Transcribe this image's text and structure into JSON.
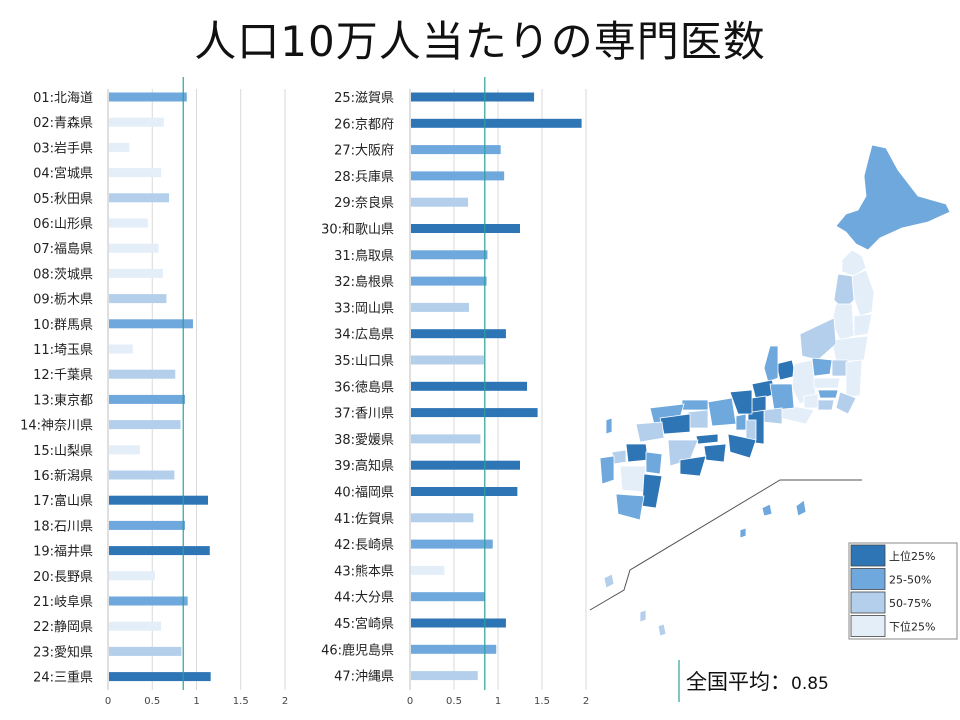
{
  "title": "人口10万人当たりの専門医数",
  "national_average": {
    "label": "全国平均：",
    "value": "0.85"
  },
  "legend": [
    {
      "label": "上位25%",
      "color": "#2e75b6"
    },
    {
      "label": "25-50%",
      "color": "#6fa8dc"
    },
    {
      "label": "50-75%",
      "color": "#b4cfec"
    },
    {
      "label": "下位25%",
      "color": "#e3eef9"
    }
  ],
  "chart_data": [
    {
      "type": "bar",
      "orientation": "horizontal",
      "xlim": [
        0,
        2
      ],
      "xticks": [
        "0",
        "0.5",
        "1",
        "1.5",
        "2"
      ],
      "reference_line": 0.85,
      "grid": true,
      "categories": [
        "01:北海道",
        "02:青森県",
        "03:岩手県",
        "04:宮城県",
        "05:秋田県",
        "06:山形県",
        "07:福島県",
        "08:茨城県",
        "09:栃木県",
        "10:群馬県",
        "11:埼玉県",
        "12:千葉県",
        "13:東京都",
        "14:神奈川県",
        "15:山梨県",
        "16:新潟県",
        "17:富山県",
        "18:石川県",
        "19:福井県",
        "20:長野県",
        "21:岐阜県",
        "22:静岡県",
        "23:愛知県",
        "24:三重県"
      ],
      "values": [
        0.89,
        0.63,
        0.24,
        0.6,
        0.69,
        0.45,
        0.57,
        0.62,
        0.66,
        0.96,
        0.28,
        0.76,
        0.87,
        0.82,
        0.36,
        0.75,
        1.13,
        0.87,
        1.15,
        0.53,
        0.9,
        0.6,
        0.83,
        1.16
      ],
      "quartiles": [
        2,
        4,
        4,
        4,
        3,
        4,
        4,
        4,
        3,
        2,
        4,
        3,
        2,
        3,
        4,
        3,
        1,
        2,
        1,
        4,
        2,
        4,
        3,
        1
      ]
    },
    {
      "type": "bar",
      "orientation": "horizontal",
      "xlim": [
        0,
        2
      ],
      "xticks": [
        "0",
        "0.5",
        "1",
        "1.5",
        "2"
      ],
      "reference_line": 0.85,
      "grid": true,
      "categories": [
        "25:滋賀県",
        "26:京都府",
        "27:大阪府",
        "28:兵庫県",
        "29:奈良県",
        "30:和歌山県",
        "31:鳥取県",
        "32:島根県",
        "33:岡山県",
        "34:広島県",
        "35:山口県",
        "36:徳島県",
        "37:香川県",
        "38:愛媛県",
        "39:高知県",
        "40:福岡県",
        "41:佐賀県",
        "42:長崎県",
        "43:熊本県",
        "44:大分県",
        "45:宮崎県",
        "46:鹿児島県",
        "47:沖縄県"
      ],
      "values": [
        1.41,
        1.95,
        1.03,
        1.07,
        0.66,
        1.25,
        0.88,
        0.87,
        0.67,
        1.09,
        0.84,
        1.33,
        1.45,
        0.8,
        1.25,
        1.22,
        0.72,
        0.94,
        0.39,
        0.85,
        1.09,
        0.98,
        0.77
      ],
      "quartiles": [
        1,
        1,
        2,
        2,
        3,
        1,
        2,
        2,
        3,
        1,
        3,
        1,
        1,
        3,
        1,
        1,
        3,
        2,
        4,
        2,
        1,
        2,
        3
      ]
    }
  ]
}
